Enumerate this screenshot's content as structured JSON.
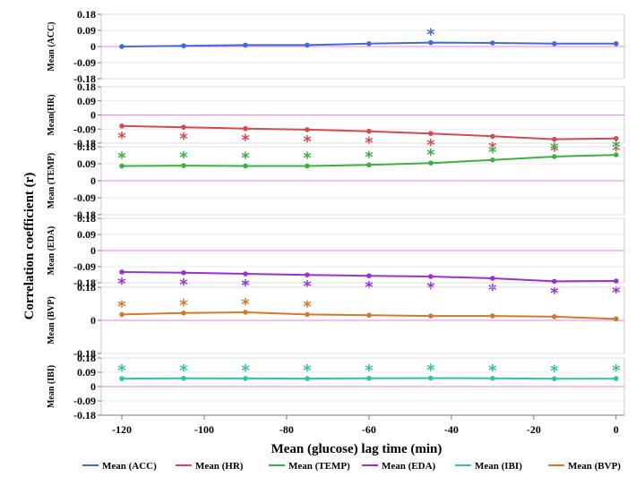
{
  "chart_data": {
    "type": "line",
    "xlabel": "Mean (glucose) lag time (min)",
    "ylabel": "Correlation coefficient (r)",
    "x": [
      -120,
      -105,
      -90,
      -75,
      -60,
      -45,
      -30,
      -15,
      0
    ],
    "x_ticks": [
      -120,
      -100,
      -80,
      -60,
      -40,
      -20,
      0
    ],
    "x_tick_labels": [
      "-120",
      "-100",
      "-80",
      "-60",
      "-40",
      "-20",
      "0"
    ],
    "panels": [
      {
        "key": "acc",
        "ylabel": "Mean (ACC)",
        "color": "#4169e1",
        "ylim": [
          -0.18,
          0.18
        ],
        "y_ticks": [
          0.18,
          0.09,
          0,
          -0.09,
          -0.18
        ],
        "y_tick_labels": [
          "0.18",
          "0.09",
          "0",
          "-0.09",
          "-0.18"
        ],
        "values": [
          0.0,
          0.004,
          0.008,
          0.008,
          0.016,
          0.022,
          0.02,
          0.016,
          0.016
        ],
        "significant": [
          false,
          false,
          false,
          false,
          false,
          true,
          false,
          false,
          false
        ],
        "star_position": "above"
      },
      {
        "key": "hr",
        "ylabel": "Mean(HR)",
        "color": "#d94850",
        "ylim": [
          -0.18,
          0.18
        ],
        "y_ticks": [
          0.18,
          0.09,
          0,
          -0.09,
          -0.18
        ],
        "y_tick_labels": [
          "0.18",
          "0.09",
          "0",
          "-0.09",
          "-0.18"
        ],
        "values": [
          -0.07,
          -0.078,
          -0.087,
          -0.094,
          -0.104,
          -0.118,
          -0.136,
          -0.155,
          -0.15
        ],
        "significant": [
          true,
          true,
          true,
          true,
          true,
          true,
          true,
          true,
          true
        ],
        "star_position": "below"
      },
      {
        "key": "temp",
        "ylabel": "Mean (TEMP)",
        "color": "#3cb043",
        "ylim": [
          -0.18,
          0.18
        ],
        "y_ticks": [
          0.18,
          0.09,
          0,
          -0.09,
          -0.18
        ],
        "y_tick_labels": [
          "0.18",
          "0.09",
          "0",
          "-0.09",
          "-0.18"
        ],
        "values": [
          0.078,
          0.08,
          0.078,
          0.078,
          0.084,
          0.094,
          0.11,
          0.128,
          0.137
        ],
        "significant": [
          true,
          true,
          true,
          true,
          true,
          true,
          true,
          true,
          true
        ],
        "star_position": "above"
      },
      {
        "key": "eda",
        "ylabel": "Mean (EDA)",
        "color": "#9b30d9",
        "ylim": [
          -0.18,
          0.18
        ],
        "y_ticks": [
          0.18,
          0.09,
          0,
          -0.09,
          -0.18
        ],
        "y_tick_labels": [
          "0.18",
          "0.09",
          "0",
          "-0.09",
          "-0.18"
        ],
        "values": [
          -0.12,
          -0.124,
          -0.13,
          -0.136,
          -0.141,
          -0.145,
          -0.155,
          -0.172,
          -0.17
        ],
        "significant": [
          true,
          true,
          true,
          true,
          true,
          true,
          true,
          true,
          true
        ],
        "star_position": "below"
      },
      {
        "key": "bvp",
        "ylabel": "Mean (BVP)",
        "color": "#d4782a",
        "ylim": [
          -0.18,
          0.18
        ],
        "y_ticks": [
          0.18,
          0,
          -0.18
        ],
        "y_tick_labels": [
          "0.18",
          "0",
          "-0.18"
        ],
        "values": [
          0.032,
          0.04,
          0.044,
          0.032,
          0.028,
          0.024,
          0.024,
          0.02,
          0.008
        ],
        "significant": [
          true,
          true,
          true,
          true,
          false,
          false,
          false,
          false,
          false
        ],
        "star_position": "above"
      },
      {
        "key": "ibi",
        "ylabel": "Mean (IBI)",
        "color": "#2ec4a0",
        "ylim": [
          -0.18,
          0.18
        ],
        "y_ticks": [
          0.18,
          0.09,
          0,
          -0.09,
          -0.18
        ],
        "y_tick_labels": [
          "0.18",
          "0.09",
          "0",
          "-0.09",
          "-0.18"
        ],
        "values": [
          0.05,
          0.052,
          0.051,
          0.05,
          0.052,
          0.053,
          0.052,
          0.049,
          0.05
        ],
        "significant": [
          true,
          true,
          true,
          true,
          true,
          true,
          true,
          true,
          true
        ],
        "star_position": "above"
      }
    ],
    "legend": {
      "position": "bottom",
      "entries": [
        {
          "label": "Mean (ACC)",
          "color": "#4169e1"
        },
        {
          "label": "Mean (HR)",
          "color": "#d94850"
        },
        {
          "label": "Mean (TEMP)",
          "color": "#3cb043"
        },
        {
          "label": "Mean (EDA)",
          "color": "#9b30d9"
        },
        {
          "label": "Mean (IBI)",
          "color": "#2ec4a0"
        },
        {
          "label": "Mean (BVP)",
          "color": "#d4782a"
        }
      ]
    },
    "significance_marker": "*",
    "grid": true,
    "zero_line_color": "#ee82ee"
  }
}
